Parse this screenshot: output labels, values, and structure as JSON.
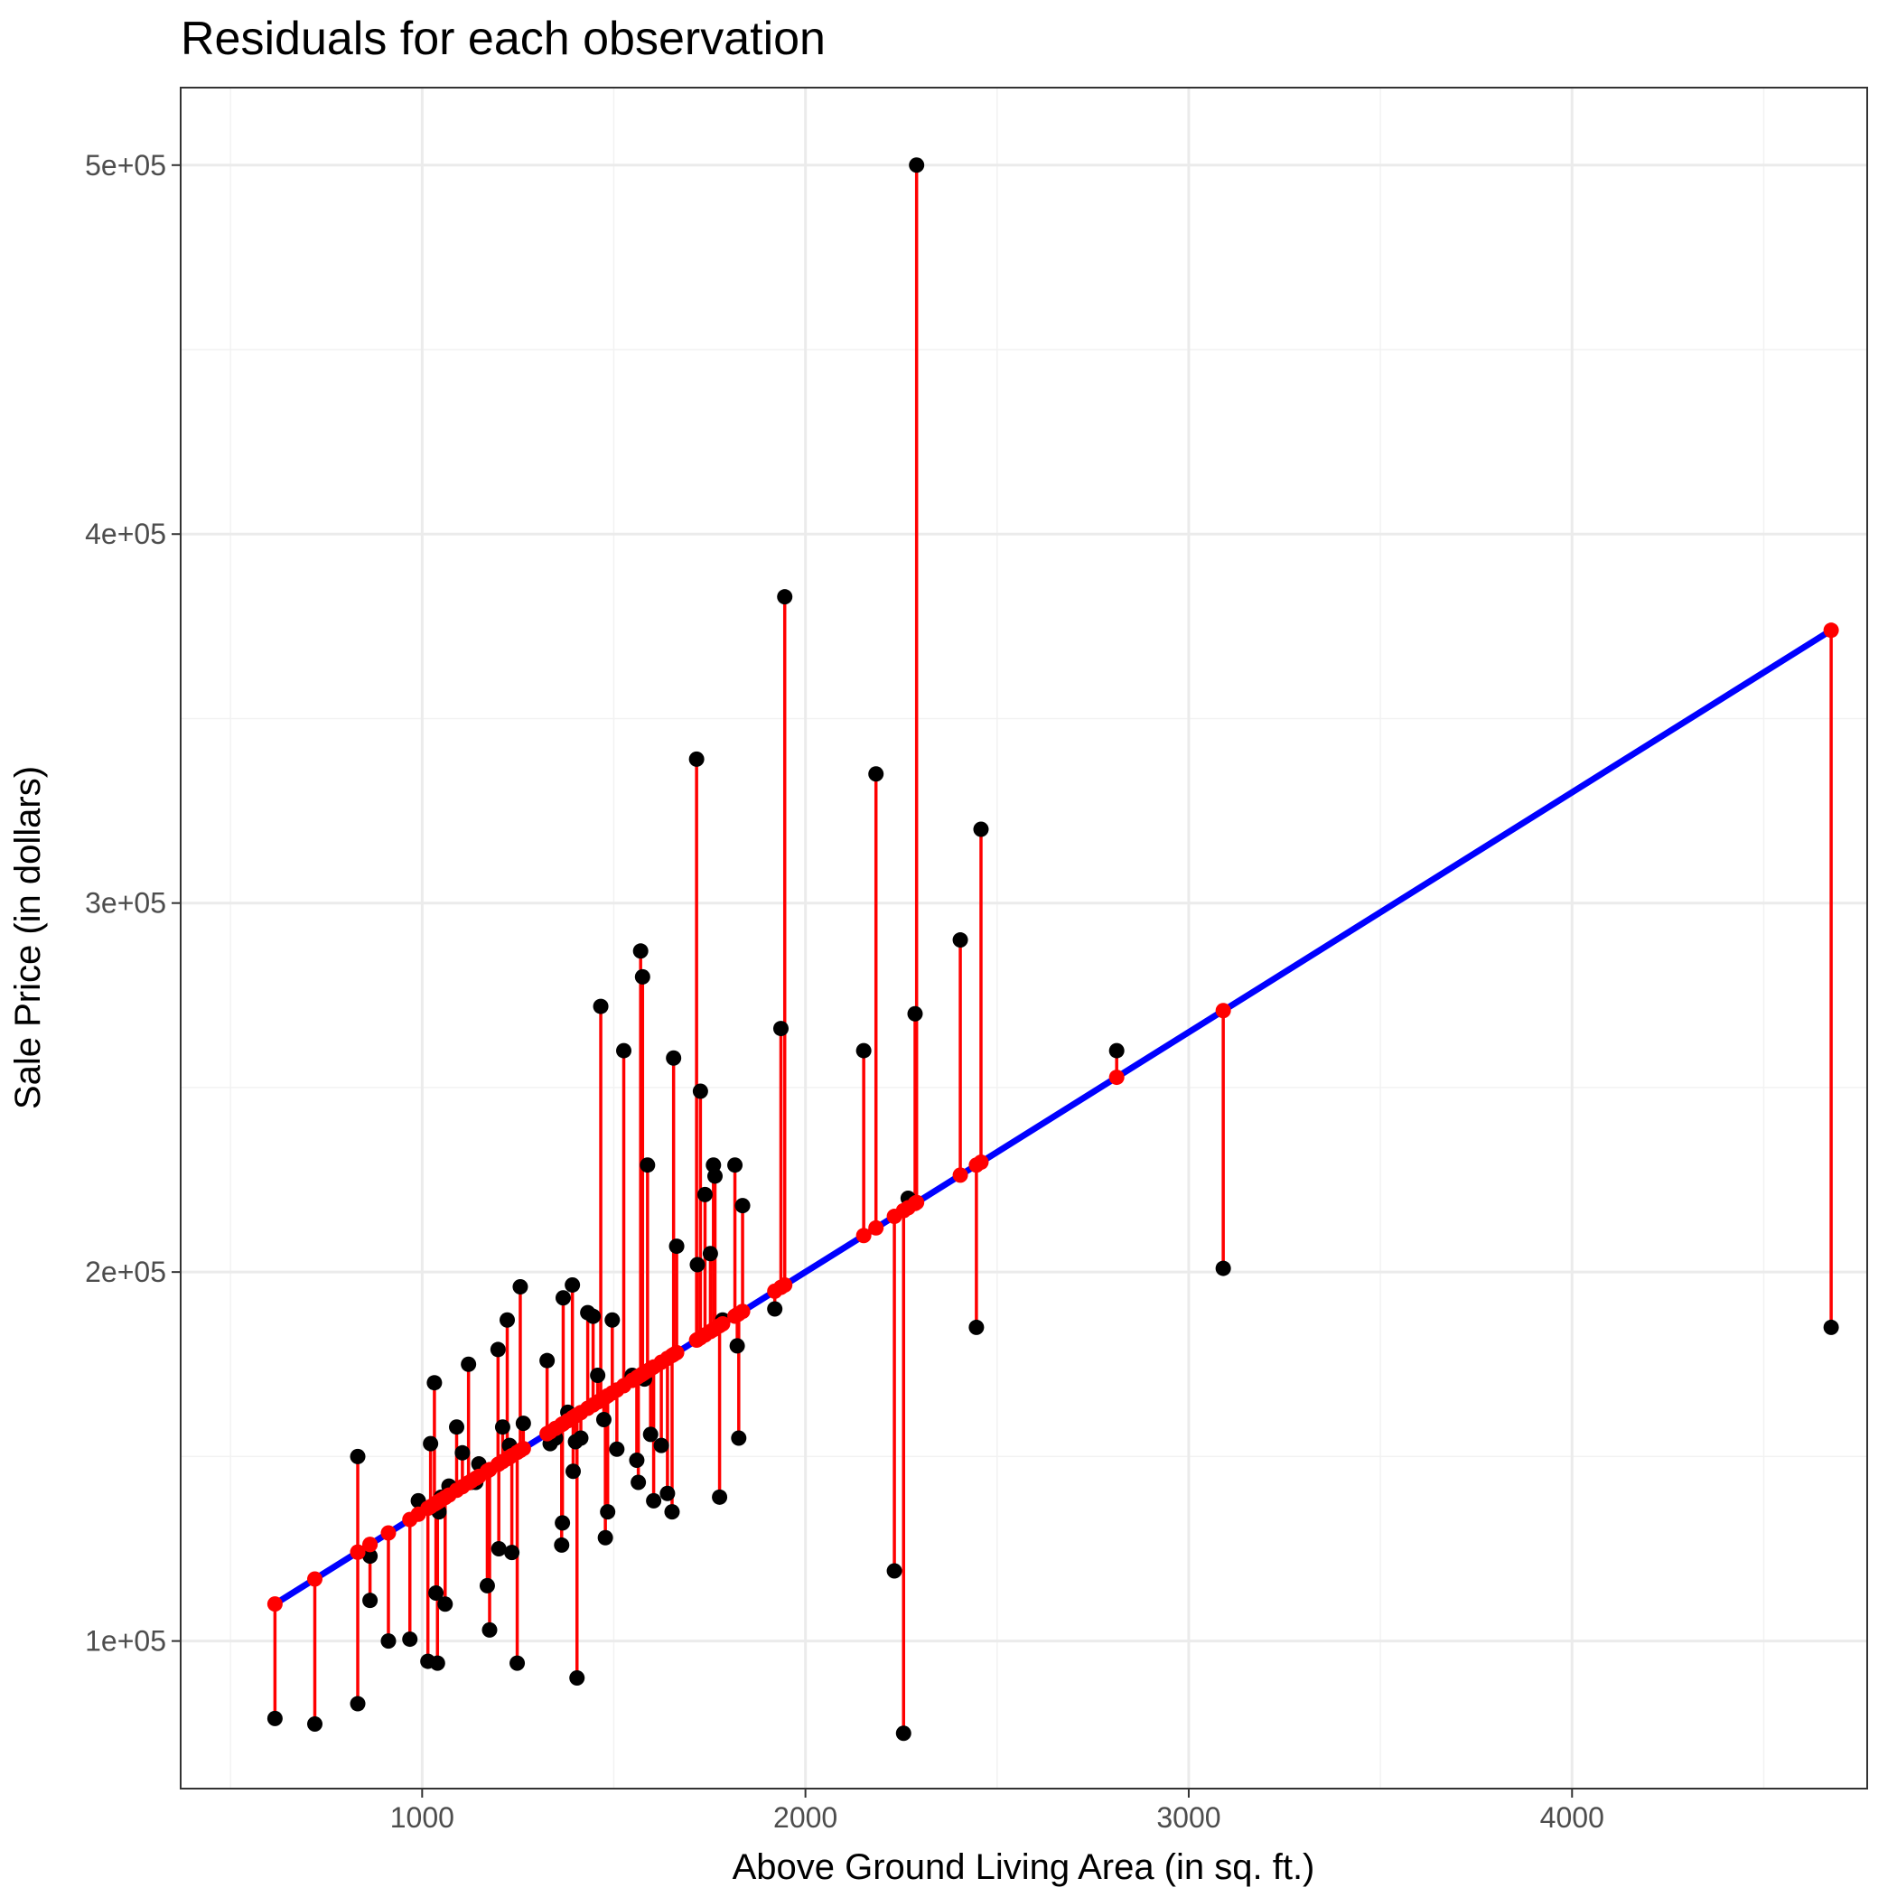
{
  "chart_data": {
    "type": "scatter",
    "title": "Residuals for each observation",
    "xlabel": "Above Ground Living Area (in sq. ft.)",
    "ylabel": "Sale Price (in dollars)",
    "xlim": [
      370,
      4770
    ],
    "ylim": [
      60000,
      521000
    ],
    "x_ticks": [
      1000,
      2000,
      3000,
      4000
    ],
    "x_tick_labels": [
      "1000",
      "2000",
      "3000",
      "4000"
    ],
    "y_ticks": [
      100000,
      200000,
      300000,
      400000,
      500000
    ],
    "y_tick_labels": [
      "1e+05",
      "2e+05",
      "3e+05",
      "4e+05",
      "5e+05"
    ],
    "grid": true,
    "legend": "none",
    "fit_line": {
      "intercept": 70000,
      "slope": 65.0,
      "color": "#0000ff"
    },
    "colors": {
      "observed": "#000000",
      "fitted": "#ff0000",
      "residual": "#ff0000"
    },
    "observations": [
      [
        616,
        79000
      ],
      [
        720,
        77500
      ],
      [
        832,
        83000
      ],
      [
        832,
        150000
      ],
      [
        864,
        123000
      ],
      [
        864,
        111000
      ],
      [
        912,
        100000
      ],
      [
        968,
        100500
      ],
      [
        990,
        138000
      ],
      [
        1015,
        94500
      ],
      [
        1022,
        153500
      ],
      [
        1032,
        170000
      ],
      [
        1036,
        113000
      ],
      [
        1040,
        94000
      ],
      [
        1044,
        135000
      ],
      [
        1050,
        139000
      ],
      [
        1060,
        110000
      ],
      [
        1070,
        142000
      ],
      [
        1090,
        158000
      ],
      [
        1105,
        151000
      ],
      [
        1121,
        175000
      ],
      [
        1128,
        143000
      ],
      [
        1140,
        143000
      ],
      [
        1148,
        148000
      ],
      [
        1170,
        115000
      ],
      [
        1176,
        103000
      ],
      [
        1198,
        179000
      ],
      [
        1200,
        125000
      ],
      [
        1210,
        158000
      ],
      [
        1222,
        187000
      ],
      [
        1228,
        153000
      ],
      [
        1234,
        124000
      ],
      [
        1248,
        94000
      ],
      [
        1256,
        196000
      ],
      [
        1264,
        159000
      ],
      [
        1326,
        176000
      ],
      [
        1334,
        153500
      ],
      [
        1348,
        155000
      ],
      [
        1364,
        126000
      ],
      [
        1366,
        132000
      ],
      [
        1368,
        193000
      ],
      [
        1380,
        162000
      ],
      [
        1392,
        196500
      ],
      [
        1394,
        146000
      ],
      [
        1400,
        154000
      ],
      [
        1404,
        90000
      ],
      [
        1414,
        155000
      ],
      [
        1432,
        189000
      ],
      [
        1446,
        188000
      ],
      [
        1458,
        172000
      ],
      [
        1466,
        272000
      ],
      [
        1474,
        160000
      ],
      [
        1478,
        128000
      ],
      [
        1484,
        135000
      ],
      [
        1496,
        187000
      ],
      [
        1508,
        152000
      ],
      [
        1526,
        260000
      ],
      [
        1548,
        172000
      ],
      [
        1560,
        149000
      ],
      [
        1564,
        143000
      ],
      [
        1570,
        287000
      ],
      [
        1575,
        280000
      ],
      [
        1580,
        171000
      ],
      [
        1588,
        229000
      ],
      [
        1596,
        156000
      ],
      [
        1604,
        138000
      ],
      [
        1624,
        153000
      ],
      [
        1640,
        140000
      ],
      [
        1652,
        135000
      ],
      [
        1656,
        258000
      ],
      [
        1664,
        207000
      ],
      [
        1716,
        339000
      ],
      [
        1718,
        202000
      ],
      [
        1726,
        249000
      ],
      [
        1738,
        221000
      ],
      [
        1752,
        205000
      ],
      [
        1760,
        229000
      ],
      [
        1764,
        226000
      ],
      [
        1776,
        139000
      ],
      [
        1784,
        187000
      ],
      [
        1816,
        229000
      ],
      [
        1822,
        180000
      ],
      [
        1826,
        155000
      ],
      [
        1836,
        218000
      ],
      [
        1920,
        190000
      ],
      [
        1936,
        266000
      ],
      [
        1946,
        383000
      ],
      [
        2152,
        260000
      ],
      [
        2184,
        335000
      ],
      [
        2232,
        119000
      ],
      [
        2256,
        75000
      ],
      [
        2268,
        220000
      ],
      [
        2286,
        270000
      ],
      [
        2290,
        500000
      ],
      [
        2404,
        290000
      ],
      [
        2446,
        185000
      ],
      [
        2458,
        320000
      ],
      [
        2812,
        260000
      ],
      [
        3090,
        201000
      ],
      [
        4676,
        185000
      ]
    ]
  }
}
